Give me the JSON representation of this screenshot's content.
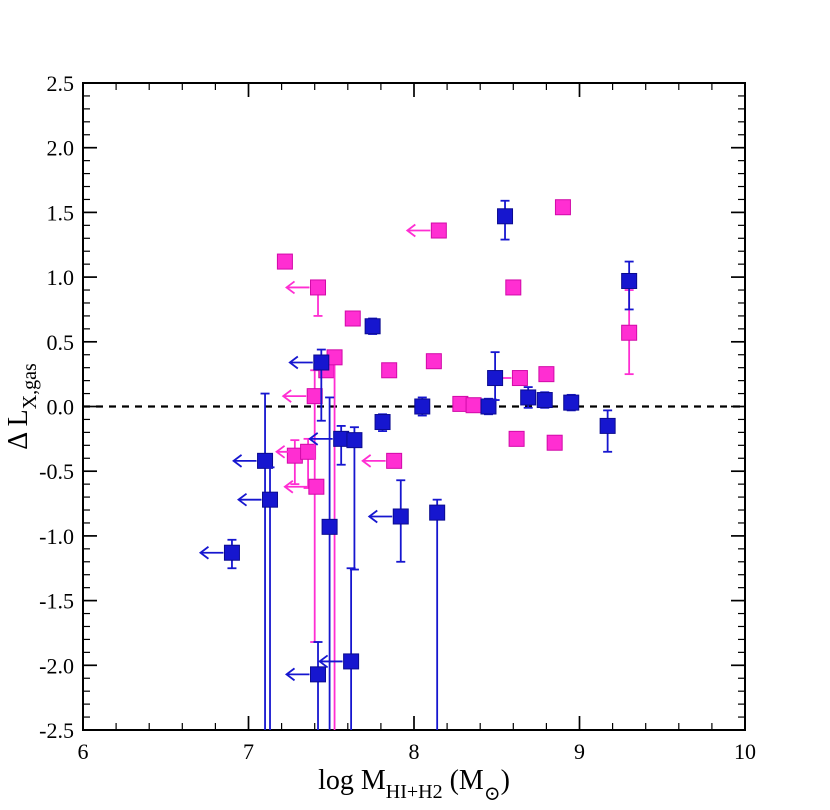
{
  "figure": {
    "x_ticks": [
      "6",
      "7",
      "8",
      "9",
      "10"
    ],
    "y_ticks": [
      "-2.5",
      "-2.0",
      "-1.5",
      "-1.0",
      "-0.5",
      "0.0",
      "0.5",
      "1.0",
      "1.5",
      "2.0",
      "2.5"
    ],
    "xlabel": {
      "prefix": "log M",
      "subscript": "HI+H2",
      "mid": " (M",
      "sun_symbol": "⊙",
      "suffix": ")"
    },
    "ylabel": {
      "prefix": "Δ L",
      "subscript": "X,gas"
    }
  },
  "colors": {
    "blue_series": "#1616cf",
    "blue_edge": "#0b0b8f",
    "magenta_series": "#ff2ed2",
    "magenta_edge": "#d10aa8",
    "axis": "#000000"
  },
  "chart_data": {
    "type": "scatter",
    "title": "",
    "xlabel": "log M_HI+H2 (M_sun)",
    "ylabel": "Delta L_X,gas",
    "xlim": [
      6,
      10
    ],
    "ylim": [
      -2.5,
      2.5
    ],
    "x_major_ticks": [
      6,
      7,
      8,
      9,
      10
    ],
    "y_major_ticks": [
      -2.5,
      -2,
      -1.5,
      -1,
      -0.5,
      0,
      0.5,
      1,
      1.5,
      2,
      2.5
    ],
    "x_minor_step": 0.2,
    "y_minor_step": 0.1,
    "grid": false,
    "legend": "none",
    "reference_line_y": 0,
    "note": "err_lo of 3 means the lower error bar extends beyond the plot bottom (clipped at y=-2.5); upper_limit true draws a left-pointing arrow indicating an x-axis upper limit",
    "series": [
      {
        "name": "magenta-sample",
        "marker": "square",
        "color_key": "magenta_series",
        "points": [
          {
            "x": 7.22,
            "y": 1.12
          },
          {
            "x": 7.28,
            "y": -0.38,
            "err_lo": 0.22,
            "err_hi": 0.12
          },
          {
            "x": 7.36,
            "y": -0.35,
            "err_lo": 0.28,
            "err_hi": 0.1,
            "upper_limit": true
          },
          {
            "x": 7.4,
            "y": 0.08,
            "err_lo": 1.9,
            "err_hi": 0.2,
            "upper_limit": true
          },
          {
            "x": 7.41,
            "y": -0.62,
            "upper_limit": true
          },
          {
            "x": 7.42,
            "y": 0.92,
            "err_lo": 0.22,
            "upper_limit": true
          },
          {
            "x": 7.47,
            "y": 0.28
          },
          {
            "x": 7.52,
            "y": 0.38,
            "err_lo": 3
          },
          {
            "x": 7.63,
            "y": 0.68
          },
          {
            "x": 7.85,
            "y": 0.28
          },
          {
            "x": 7.88,
            "y": -0.42,
            "upper_limit": true
          },
          {
            "x": 8.12,
            "y": 0.35
          },
          {
            "x": 8.15,
            "y": 1.36,
            "upper_limit": true
          },
          {
            "x": 8.28,
            "y": 0.02
          },
          {
            "x": 8.36,
            "y": 0.01
          },
          {
            "x": 8.6,
            "y": 0.92
          },
          {
            "x": 8.62,
            "y": -0.25
          },
          {
            "x": 8.64,
            "y": 0.22,
            "upper_limit": true
          },
          {
            "x": 8.8,
            "y": 0.25
          },
          {
            "x": 8.85,
            "y": -0.28
          },
          {
            "x": 8.9,
            "y": 1.54
          },
          {
            "x": 9.3,
            "y": 0.57,
            "err_lo": 0.32,
            "err_hi": 0.33
          }
        ]
      },
      {
        "name": "blue-sample",
        "marker": "square",
        "color_key": "blue_series",
        "points": [
          {
            "x": 6.9,
            "y": -1.13,
            "err_lo": 0.12,
            "err_hi": 0.1,
            "upper_limit": true
          },
          {
            "x": 7.1,
            "y": -0.42,
            "err_lo": 3,
            "err_hi": 0.52,
            "upper_limit": true
          },
          {
            "x": 7.13,
            "y": -0.72,
            "err_lo": 3,
            "err_hi": 0.25,
            "upper_limit": true
          },
          {
            "x": 7.42,
            "y": -2.07,
            "err_lo": 3,
            "err_hi": 0.25,
            "upper_limit": true
          },
          {
            "x": 7.44,
            "y": 0.34,
            "err_lo": 0.45,
            "err_hi": 0.1,
            "upper_limit": true
          },
          {
            "x": 7.49,
            "y": -0.93,
            "err_lo": 3,
            "err_hi": 1.0
          },
          {
            "x": 7.56,
            "y": -0.25,
            "err_lo": 0.2,
            "err_hi": 0.1,
            "upper_limit": true
          },
          {
            "x": 7.62,
            "y": -1.97,
            "err_lo": 3,
            "err_hi": 0.72,
            "upper_limit": true
          },
          {
            "x": 7.64,
            "y": -0.26,
            "err_lo": 1.0,
            "err_hi": 0.1
          },
          {
            "x": 7.75,
            "y": 0.62,
            "err_lo": 0.06,
            "err_hi": 0.06
          },
          {
            "x": 7.81,
            "y": -0.12,
            "err_lo": 0.07,
            "err_hi": 0.06
          },
          {
            "x": 7.92,
            "y": -0.85,
            "err_lo": 0.35,
            "err_hi": 0.28,
            "upper_limit": true
          },
          {
            "x": 8.05,
            "y": 0.0,
            "err_lo": 0.07,
            "err_hi": 0.07
          },
          {
            "x": 8.14,
            "y": -0.82,
            "err_lo": 3,
            "err_hi": 0.1
          },
          {
            "x": 8.45,
            "y": 0.0,
            "err_lo": 0.06,
            "err_hi": 0.06
          },
          {
            "x": 8.49,
            "y": 0.22,
            "err_lo": 0.17,
            "err_hi": 0.2
          },
          {
            "x": 8.55,
            "y": 1.47,
            "err_lo": 0.18,
            "err_hi": 0.12
          },
          {
            "x": 8.69,
            "y": 0.07,
            "err_lo": 0.08,
            "err_hi": 0.08
          },
          {
            "x": 8.79,
            "y": 0.05,
            "err_lo": 0.06,
            "err_hi": 0.06
          },
          {
            "x": 8.95,
            "y": 0.03,
            "err_lo": 0.06,
            "err_hi": 0.06
          },
          {
            "x": 9.17,
            "y": -0.15,
            "err_lo": 0.2,
            "err_hi": 0.12
          },
          {
            "x": 9.3,
            "y": 0.97,
            "err_lo": 0.22,
            "err_hi": 0.15
          }
        ]
      }
    ]
  }
}
